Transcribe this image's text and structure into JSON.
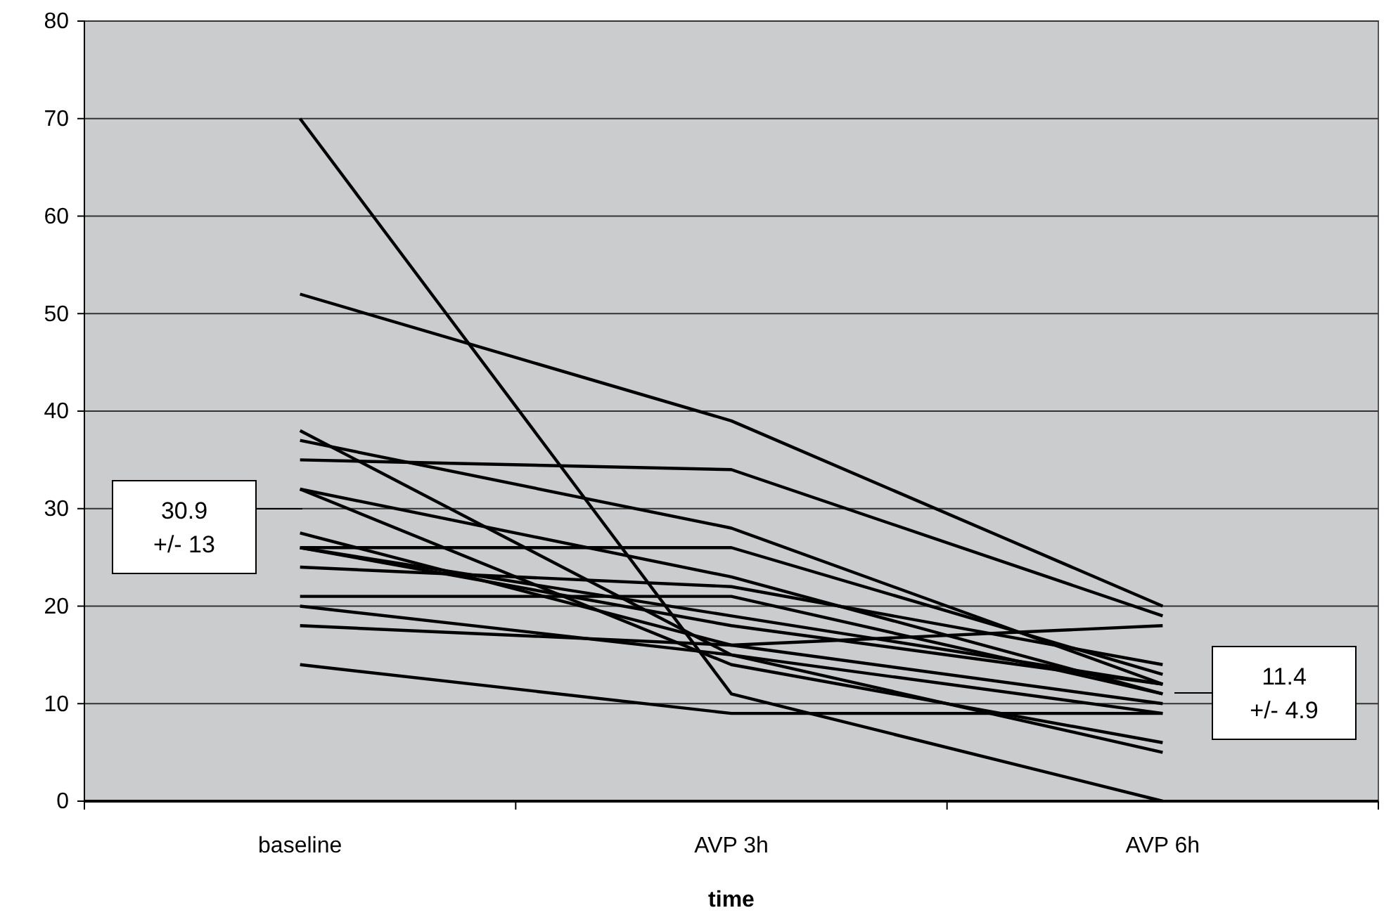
{
  "chart_data": {
    "type": "line",
    "xlabel": "time",
    "categories": [
      "baseline",
      "AVP 3h",
      "AVP 6h"
    ],
    "series": [
      {
        "color": "#000000",
        "values": [
          70,
          11,
          0
        ]
      },
      {
        "color": "#000000",
        "values": [
          52,
          39,
          20
        ]
      },
      {
        "color": "#000000",
        "values": [
          38,
          15,
          5
        ]
      },
      {
        "color": "#000000",
        "values": [
          37,
          28,
          12
        ]
      },
      {
        "color": "#000000",
        "values": [
          35,
          34,
          19
        ]
      },
      {
        "color": "#000000",
        "values": [
          32,
          23,
          11
        ]
      },
      {
        "color": "#000000",
        "values": [
          32,
          14,
          6
        ]
      },
      {
        "color": "#000000",
        "values": [
          27.5,
          16,
          18
        ]
      },
      {
        "color": "#000000",
        "values": [
          26,
          26,
          13
        ]
      },
      {
        "color": "#000000",
        "values": [
          26,
          19,
          12
        ]
      },
      {
        "color": "#000000",
        "values": [
          26,
          18,
          12
        ]
      },
      {
        "color": "#000000",
        "values": [
          24,
          22,
          14
        ]
      },
      {
        "color": "#000000",
        "values": [
          21,
          21,
          11
        ]
      },
      {
        "color": "#000000",
        "values": [
          20,
          15,
          9
        ]
      },
      {
        "color": "#000000",
        "values": [
          18,
          16,
          10
        ]
      },
      {
        "color": "#000000",
        "values": [
          14,
          9,
          9
        ]
      }
    ],
    "ylim": [
      0,
      80
    ],
    "yticks": [
      0,
      10,
      20,
      30,
      40,
      50,
      60,
      70,
      80
    ],
    "grid": "y",
    "marker": "none",
    "line_style": "solid",
    "annotations": [
      "30.9\n+/- 13",
      "11.4\n+/- 4.9"
    ]
  }
}
